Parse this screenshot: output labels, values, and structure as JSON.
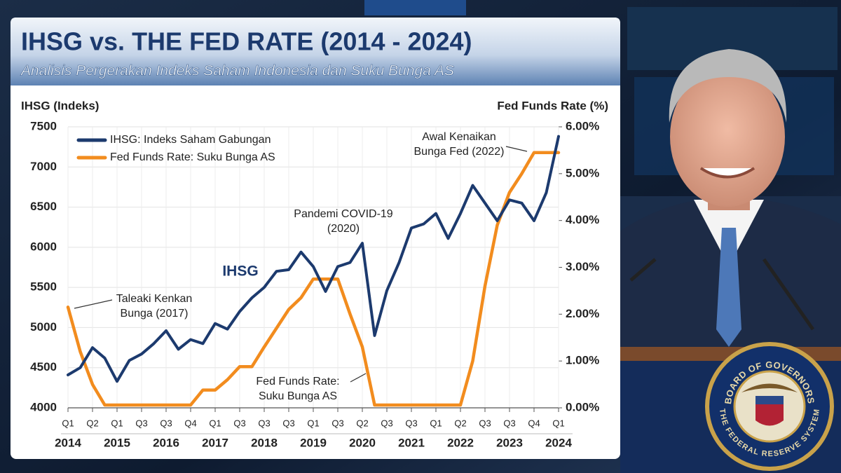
{
  "chart_data": {
    "type": "line",
    "title": "IHSG vs. THE FED RATE (2014 - 2024)",
    "subtitle": "Analisis Pergerakan Indeks Saham Indonesia dan Suku Bunga AS",
    "ylabel": "IHSG (Indeks)",
    "y2label": "Fed Funds Rate (%)",
    "x": [
      2014,
      2014.25,
      2014.5,
      2014.75,
      2015,
      2015.25,
      2015.5,
      2015.75,
      2016,
      2016.25,
      2016.5,
      2016.75,
      2017,
      2017.25,
      2017.5,
      2017.75,
      2018,
      2018.25,
      2018.5,
      2018.75,
      2019,
      2019.25,
      2019.5,
      2019.75,
      2020,
      2020.25,
      2020.5,
      2020.75,
      2021,
      2021.25,
      2021.5,
      2021.75,
      2022,
      2022.25,
      2022.5,
      2022.75,
      2023,
      2023.25,
      2023.5,
      2023.75,
      2024
    ],
    "xlim": [
      2014,
      2024
    ],
    "xticks": [
      {
        "value": 2014,
        "label": "Q1"
      },
      {
        "value": 2014.5,
        "label": "Q2"
      },
      {
        "value": 2015,
        "label": "Q1"
      },
      {
        "value": 2015.5,
        "label": "Q3"
      },
      {
        "value": 2016,
        "label": "Q3"
      },
      {
        "value": 2016.5,
        "label": "Q4"
      },
      {
        "value": 2017,
        "label": "Q1"
      },
      {
        "value": 2017.5,
        "label": "Q3"
      },
      {
        "value": 2018,
        "label": "Q3"
      },
      {
        "value": 2018.5,
        "label": "Q3"
      },
      {
        "value": 2019,
        "label": "Q1"
      },
      {
        "value": 2019.5,
        "label": "Q3"
      },
      {
        "value": 2020,
        "label": "Q2"
      },
      {
        "value": 2020.5,
        "label": "Q3"
      },
      {
        "value": 2021,
        "label": "Q3"
      },
      {
        "value": 2021.5,
        "label": "Q1"
      },
      {
        "value": 2022,
        "label": "Q2"
      },
      {
        "value": 2022.5,
        "label": "Q3"
      },
      {
        "value": 2023,
        "label": "Q3"
      },
      {
        "value": 2023.5,
        "label": "Q4"
      },
      {
        "value": 2024,
        "label": "Q1"
      }
    ],
    "year_ticks": [
      2014,
      2015,
      2016,
      2017,
      2018,
      2019,
      2020,
      2021,
      2022,
      2023,
      2024
    ],
    "ylim": [
      4000,
      7500
    ],
    "yticks": [
      4000,
      4500,
      5000,
      5500,
      6000,
      6500,
      7000,
      7500
    ],
    "y2lim": [
      0,
      6
    ],
    "y2ticks": [
      {
        "value": 0,
        "label": "0.00%"
      },
      {
        "value": 1,
        "label": "1.00%"
      },
      {
        "value": 2,
        "label": "2.00%"
      },
      {
        "value": 3,
        "label": "3.00%"
      },
      {
        "value": 4,
        "label": "4.00%"
      },
      {
        "value": 5,
        "label": "5.00%"
      },
      {
        "value": 6,
        "label": "6.00%"
      }
    ],
    "grid": true,
    "series": [
      {
        "name": "IHSG: Indeks Saham Gabungan",
        "color": "#1c3a6e",
        "values": [
          4410,
          4500,
          4750,
          4620,
          4330,
          4590,
          4670,
          4800,
          4960,
          4730,
          4850,
          4800,
          5050,
          4980,
          5200,
          5370,
          5500,
          5700,
          5720,
          5940,
          5760,
          5450,
          5760,
          5810,
          6050,
          4900,
          5460,
          5810,
          6240,
          6290,
          6420,
          6110,
          6420,
          6770,
          6550,
          6330,
          6590,
          6550,
          6330,
          6680,
          7380
        ]
      },
      {
        "name": "Fed Funds Rate: Suku Bunga AS",
        "color": "#f28c1e",
        "axis": "y2",
        "values": [
          2.15,
          1.2,
          0.5,
          0.06,
          0.06,
          0.06,
          0.06,
          0.06,
          0.06,
          0.06,
          0.06,
          0.38,
          0.38,
          0.6,
          0.88,
          0.88,
          1.3,
          1.7,
          2.1,
          2.35,
          2.75,
          2.75,
          2.75,
          2.0,
          1.3,
          0.06,
          0.06,
          0.06,
          0.06,
          0.06,
          0.06,
          0.06,
          0.06,
          1.0,
          2.6,
          3.9,
          4.6,
          5.0,
          5.45,
          5.45,
          5.45
        ]
      }
    ],
    "series_label": "IHSG",
    "annotations": [
      [
        "Pandemi COVID-19",
        "(2020)"
      ],
      [
        "Awal Kenaikan",
        "Bunga Fed (2022)"
      ],
      [
        "Taleaki Kenkan",
        "Bunga (2017)"
      ],
      [
        "Fed Funds Rate:",
        "Suku Bunga AS"
      ]
    ]
  },
  "seal": {
    "top_text": "BOARD OF GOVERNORS",
    "bottom_text": "THE FEDERAL RESERVE SYSTEM"
  }
}
